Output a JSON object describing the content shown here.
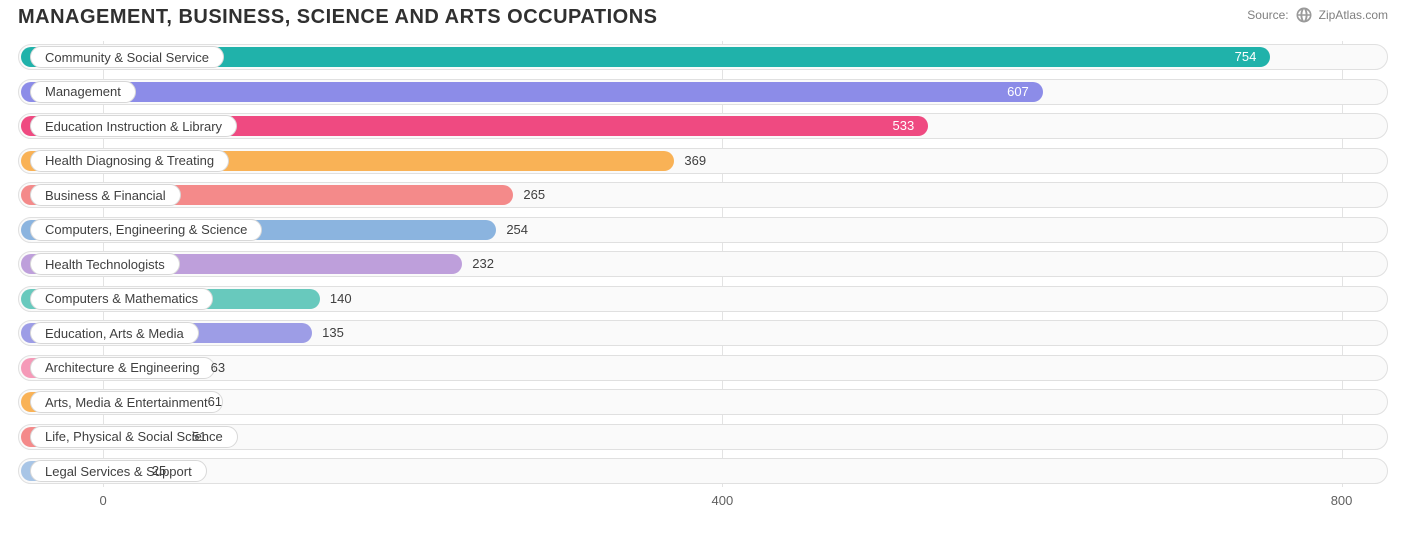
{
  "header": {
    "title": "MANAGEMENT, BUSINESS, SCIENCE AND ARTS OCCUPATIONS",
    "source_label": "Source:",
    "source_name": "ZipAtlas.com"
  },
  "chart": {
    "type": "bar-horizontal",
    "xlim": [
      -55,
      830
    ],
    "xticks": [
      0,
      400,
      800
    ],
    "track_border": "#e0e0e0",
    "track_bg": "#fafafa",
    "grid_color": "#e3e3e3",
    "background_color": "#ffffff",
    "label_fontsize": 13,
    "title_fontsize": 20,
    "bars": [
      {
        "label": "Community & Social Service",
        "value": 754,
        "color": "#20b2aa",
        "value_inside": true
      },
      {
        "label": "Management",
        "value": 607,
        "color": "#8c8ce8",
        "value_inside": true
      },
      {
        "label": "Education Instruction & Library",
        "value": 533,
        "color": "#ef4a81",
        "value_inside": true
      },
      {
        "label": "Health Diagnosing & Treating",
        "value": 369,
        "color": "#f9b256",
        "value_inside": false
      },
      {
        "label": "Business & Financial",
        "value": 265,
        "color": "#f48a8a",
        "value_inside": false
      },
      {
        "label": "Computers, Engineering & Science",
        "value": 254,
        "color": "#8bb4df",
        "value_inside": false
      },
      {
        "label": "Health Technologists",
        "value": 232,
        "color": "#be9fdb",
        "value_inside": false
      },
      {
        "label": "Computers & Mathematics",
        "value": 140,
        "color": "#68c9bd",
        "value_inside": false
      },
      {
        "label": "Education, Arts & Media",
        "value": 135,
        "color": "#9d9de6",
        "value_inside": false
      },
      {
        "label": "Architecture & Engineering",
        "value": 63,
        "color": "#f59ab8",
        "value_inside": false
      },
      {
        "label": "Arts, Media & Entertainment",
        "value": 61,
        "color": "#f9b256",
        "value_inside": false
      },
      {
        "label": "Life, Physical & Social Science",
        "value": 51,
        "color": "#f48a8a",
        "value_inside": false
      },
      {
        "label": "Legal Services & Support",
        "value": 25,
        "color": "#a8c5e6",
        "value_inside": false
      }
    ]
  }
}
